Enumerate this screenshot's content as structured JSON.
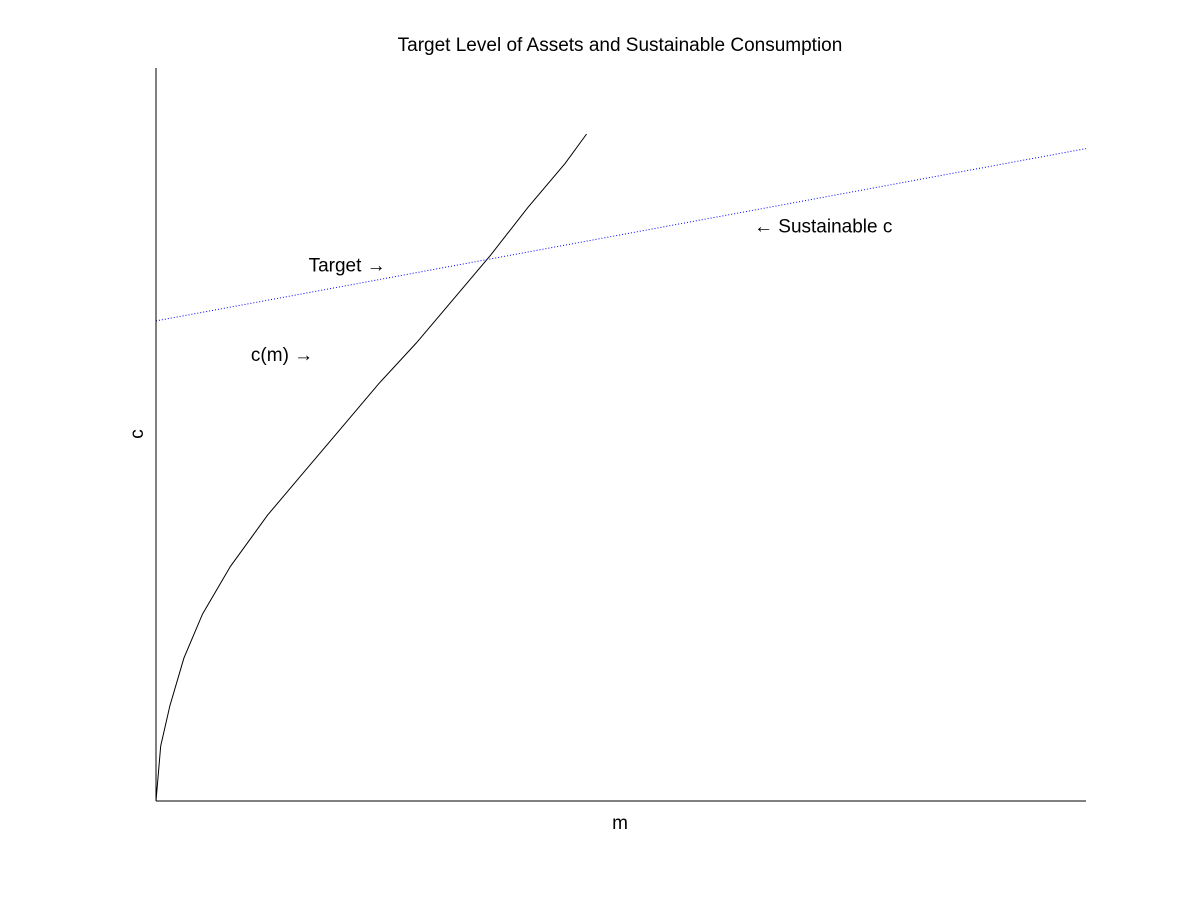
{
  "chart_data": {
    "type": "line",
    "title": "Target Level of Assets and Sustainable Consumption",
    "xlabel": "m",
    "ylabel": "c",
    "xlim": [
      0,
      1
    ],
    "ylim": [
      0,
      1
    ],
    "ticks": "none",
    "grid": false,
    "box": "left-bottom axes only",
    "series": [
      {
        "key": "consumption_function",
        "style": "solid",
        "color": "#000000",
        "x": [
          0.0,
          0.005,
          0.015,
          0.03,
          0.05,
          0.08,
          0.12,
          0.16,
          0.2,
          0.24,
          0.28,
          0.32,
          0.36,
          0.4,
          0.44,
          0.463
        ],
        "y": [
          0.0,
          0.075,
          0.13,
          0.195,
          0.255,
          0.32,
          0.39,
          0.45,
          0.51,
          0.57,
          0.625,
          0.685,
          0.745,
          0.81,
          0.87,
          0.91
        ]
      },
      {
        "key": "sustainable_consumption",
        "style": "dotted",
        "color": "#0000ff",
        "x": [
          0.0,
          1.0
        ],
        "y": [
          0.655,
          0.89
        ]
      }
    ],
    "annotations": [
      {
        "key": "target",
        "text": "Target →",
        "x": 0.247,
        "y": 0.732,
        "anchor": "end"
      },
      {
        "key": "cm",
        "text": "c(m) →",
        "x": 0.169,
        "y": 0.61,
        "anchor": "end"
      },
      {
        "key": "sustainable",
        "text": "← Sustainable c",
        "x": 0.643,
        "y": 0.785,
        "anchor": "start"
      }
    ]
  }
}
